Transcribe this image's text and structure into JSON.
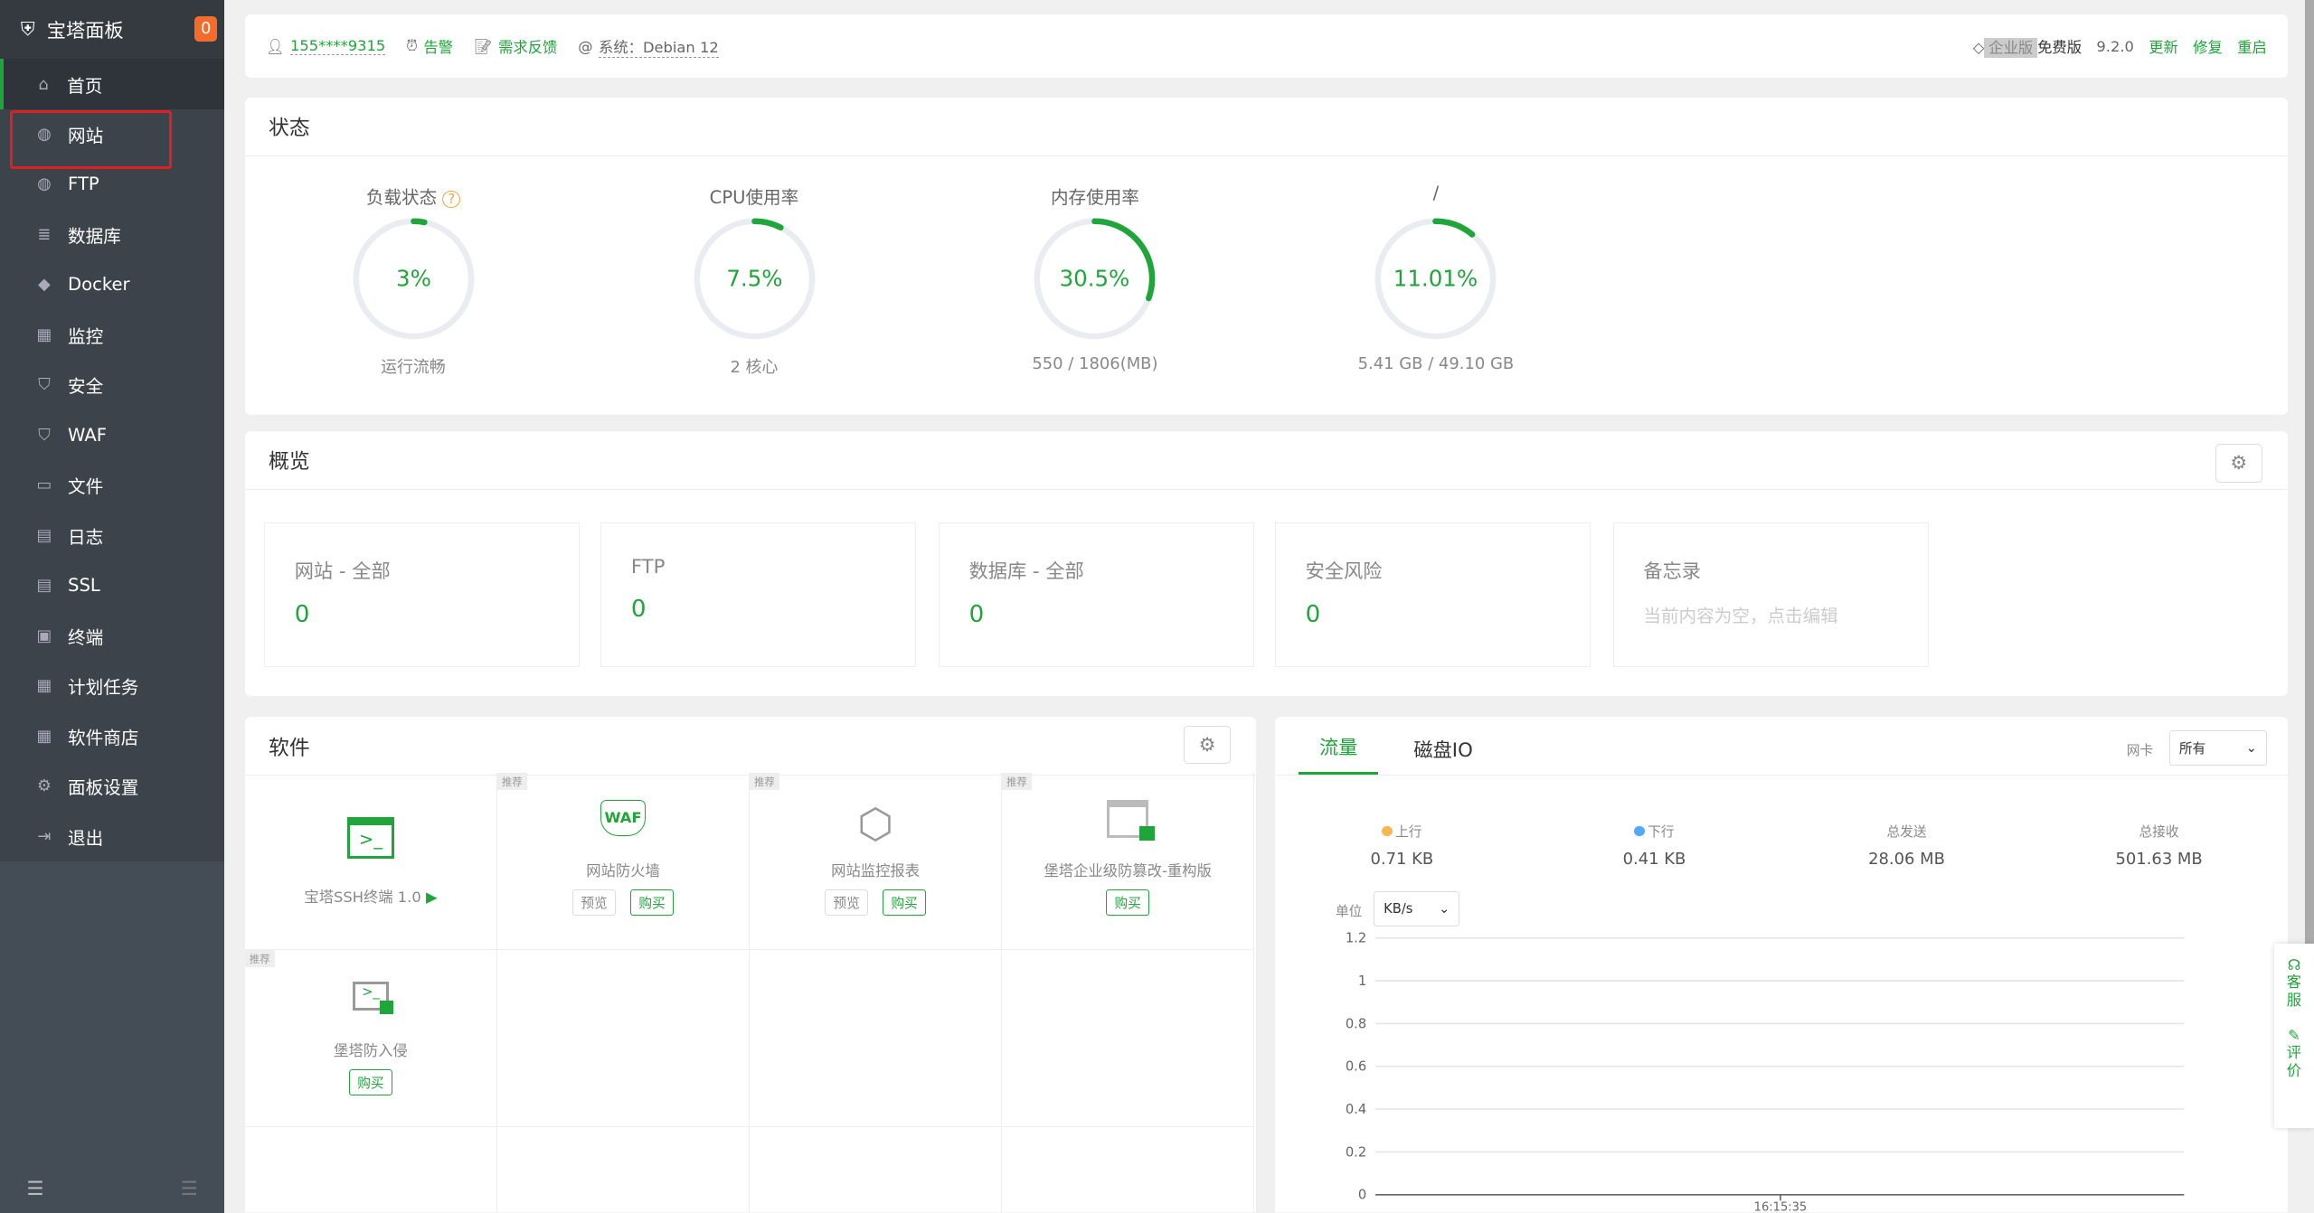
{
  "sidebar": {
    "title": "宝塔面板",
    "badge": "0",
    "items": [
      {
        "label": "首页",
        "icon": "home-icon"
      },
      {
        "label": "网站",
        "icon": "globe-icon"
      },
      {
        "label": "FTP",
        "icon": "ftp-icon"
      },
      {
        "label": "数据库",
        "icon": "database-icon"
      },
      {
        "label": "Docker",
        "icon": "docker-icon"
      },
      {
        "label": "监控",
        "icon": "monitor-icon"
      },
      {
        "label": "安全",
        "icon": "shield-icon"
      },
      {
        "label": "WAF",
        "icon": "waf-icon"
      },
      {
        "label": "文件",
        "icon": "folder-icon"
      },
      {
        "label": "日志",
        "icon": "log-icon"
      },
      {
        "label": "SSL",
        "icon": "ssl-icon"
      },
      {
        "label": "终端",
        "icon": "terminal-icon"
      },
      {
        "label": "计划任务",
        "icon": "calendar-icon"
      },
      {
        "label": "软件商店",
        "icon": "store-icon"
      },
      {
        "label": "面板设置",
        "icon": "gear-icon"
      },
      {
        "label": "退出",
        "icon": "logout-icon"
      }
    ]
  },
  "topbar": {
    "user": "155****9315",
    "alert": "告警",
    "feedback": "需求反馈",
    "system": "系统：Debian 12",
    "enterprise": "企业版",
    "free": "免费版",
    "version": "9.2.0",
    "update": "更新",
    "repair": "修复",
    "restart": "重启"
  },
  "status": {
    "title": "状态",
    "gauges": [
      {
        "title": "负载状态",
        "value": "3%",
        "percent": 3,
        "bottom": "运行流畅"
      },
      {
        "title": "CPU使用率",
        "value": "7.5%",
        "percent": 7.5,
        "bottom": "2 核心"
      },
      {
        "title": "内存使用率",
        "value": "30.5%",
        "percent": 30.5,
        "bottom": "550 / 1806(MB)"
      },
      {
        "title": "/",
        "value": "11.01%",
        "percent": 11.01,
        "bottom": "5.41 GB / 49.10 GB"
      }
    ]
  },
  "overview": {
    "title": "概览",
    "items": [
      {
        "label": "网站 - 全部",
        "value": "0"
      },
      {
        "label": "FTP",
        "value": "0"
      },
      {
        "label": "数据库 - 全部",
        "value": "0"
      },
      {
        "label": "安全风险",
        "value": "0"
      },
      {
        "label": "备忘录",
        "value": "当前内容为空，点击编辑"
      }
    ]
  },
  "software": {
    "title": "软件",
    "tag": "推荐",
    "preview": "预览",
    "buy": "购买",
    "items": [
      {
        "name": "宝塔SSH终端 1.0"
      },
      {
        "name": "网站防火墙"
      },
      {
        "name": "网站监控报表"
      },
      {
        "name": "堡塔企业级防篡改-重构版"
      },
      {
        "name": "堡塔防入侵"
      }
    ]
  },
  "traffic": {
    "tabs": [
      "流量",
      "磁盘IO"
    ],
    "nic_label": "网卡",
    "nic_value": "所有",
    "unit_label": "单位",
    "unit_value": "KB/s",
    "stats": [
      {
        "label": "上行",
        "value": "0.71 KB",
        "color": "#f7b851"
      },
      {
        "label": "下行",
        "value": "0.41 KB",
        "color": "#52a9ff"
      },
      {
        "label": "总发送",
        "value": "28.06 MB"
      },
      {
        "label": "总接收",
        "value": "501.63 MB"
      }
    ]
  },
  "chart_data": {
    "type": "line",
    "yticks": [
      "1.2",
      "1",
      "0.8",
      "0.6",
      "0.4",
      "0.2",
      "0"
    ],
    "ylim": [
      0,
      1.2
    ],
    "xticks": [
      "16:15:35"
    ],
    "series": []
  },
  "float": {
    "service": "客服",
    "review": "评价"
  }
}
